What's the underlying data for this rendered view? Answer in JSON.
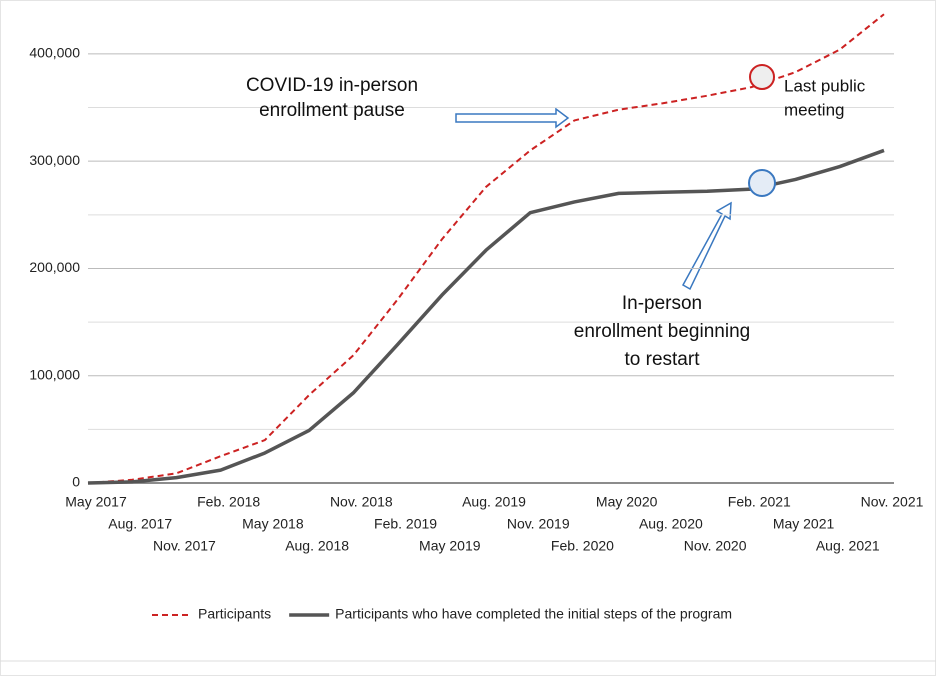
{
  "chart_data": {
    "type": "line",
    "categories": [
      "May 2017",
      "Aug. 2017",
      "Nov. 2017",
      "Feb. 2018",
      "May 2018",
      "Aug. 2018",
      "Nov. 2018",
      "Feb. 2019",
      "May 2019",
      "Aug. 2019",
      "Nov. 2019",
      "Feb. 2020",
      "May 2020",
      "Aug. 2020",
      "Nov. 2020",
      "Feb. 2021",
      "May 2021",
      "Aug. 2021",
      "Nov. 2021"
    ],
    "series": [
      {
        "name": "Participants",
        "color": "#cc2222",
        "dash": true,
        "values": [
          0,
          3000,
          9000,
          25000,
          40000,
          82000,
          119000,
          171000,
          227000,
          276000,
          310000,
          338000,
          348000,
          354000,
          361000,
          369000,
          383000,
          404000,
          437000
        ]
      },
      {
        "name": "Participants who have completed the initial steps of the program",
        "color": "#555555",
        "dash": false,
        "values": [
          0,
          1000,
          5000,
          12000,
          28000,
          49000,
          84000,
          129000,
          175000,
          217000,
          252000,
          262000,
          270000,
          271000,
          272000,
          274000,
          283000,
          295000,
          310000
        ]
      }
    ],
    "ylim": [
      0,
      440000
    ],
    "yticks": [
      {
        "value": 0,
        "label": "0"
      },
      {
        "value": 100000,
        "label": "100,000"
      },
      {
        "value": 200000,
        "label": "200,000"
      },
      {
        "value": 300000,
        "label": "300,000"
      },
      {
        "value": 400000,
        "label": "400,000"
      }
    ],
    "minor_yticks": [
      50000,
      150000,
      250000,
      350000
    ],
    "grid": true,
    "legend": "bottom",
    "annotations": [
      {
        "lines": [
          "COVID-19 in-person",
          "enrollment pause"
        ]
      },
      {
        "lines": [
          "Last public",
          "meeting"
        ]
      },
      {
        "lines": [
          "In-person",
          "enrollment beginning",
          "to restart"
        ]
      }
    ]
  }
}
